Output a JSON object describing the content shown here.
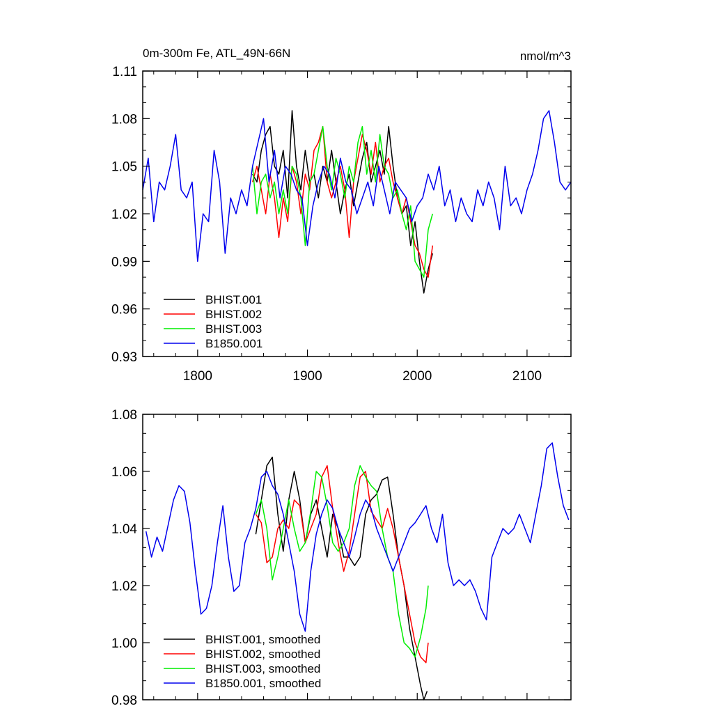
{
  "chart_data": [
    {
      "type": "line",
      "title_left": "0m-300m Fe, ATL_49N-66N",
      "title_right": "nmol/m^3",
      "xlim": [
        1750,
        2140
      ],
      "ylim": [
        0.93,
        1.11
      ],
      "xticks": [
        1800,
        1900,
        2000,
        2100
      ],
      "xtick_labels": [
        "1800",
        "1900",
        "2000",
        "2100"
      ],
      "yticks": [
        0.93,
        0.96,
        0.99,
        1.02,
        1.05,
        1.08,
        1.11
      ],
      "ytick_labels": [
        "0.93",
        "0.96",
        "0.99",
        "1.02",
        "1.05",
        "1.08",
        "1.11"
      ],
      "legend_position": "bottom-left",
      "series": [
        {
          "name": "BHIST.001",
          "color": "#000000",
          "x": [
            1850,
            1854,
            1858,
            1862,
            1866,
            1870,
            1874,
            1878,
            1882,
            1886,
            1890,
            1894,
            1898,
            1902,
            1906,
            1910,
            1914,
            1918,
            1922,
            1926,
            1930,
            1934,
            1938,
            1942,
            1946,
            1950,
            1954,
            1958,
            1962,
            1966,
            1970,
            1974,
            1978,
            1982,
            1986,
            1990,
            1994,
            1998,
            2002,
            2006,
            2010,
            2014
          ],
          "values": [
            1.045,
            1.04,
            1.06,
            1.07,
            1.075,
            1.05,
            1.045,
            1.06,
            1.03,
            1.085,
            1.05,
            1.035,
            1.06,
            1.04,
            1.045,
            1.03,
            1.05,
            1.04,
            1.06,
            1.04,
            1.02,
            1.035,
            1.045,
            1.025,
            1.04,
            1.055,
            1.065,
            1.04,
            1.05,
            1.06,
            1.045,
            1.075,
            1.05,
            1.03,
            1.02,
            1.025,
            1.0,
            1.015,
            0.99,
            0.97,
            0.985,
            0.995
          ]
        },
        {
          "name": "BHIST.002",
          "color": "#ff0000",
          "x": [
            1850,
            1854,
            1858,
            1862,
            1866,
            1870,
            1874,
            1878,
            1882,
            1886,
            1890,
            1894,
            1898,
            1902,
            1906,
            1910,
            1914,
            1918,
            1922,
            1926,
            1930,
            1934,
            1938,
            1942,
            1946,
            1950,
            1954,
            1958,
            1962,
            1966,
            1970,
            1974,
            1978,
            1982,
            1986,
            1990,
            1994,
            1998,
            2002,
            2006,
            2010,
            2014
          ],
          "values": [
            1.04,
            1.05,
            1.035,
            1.02,
            1.045,
            1.03,
            1.005,
            1.03,
            1.015,
            1.05,
            1.04,
            1.02,
            1.045,
            1.035,
            1.06,
            1.065,
            1.075,
            1.04,
            1.03,
            1.04,
            1.05,
            1.035,
            1.005,
            1.04,
            1.055,
            1.07,
            1.06,
            1.045,
            1.065,
            1.04,
            1.05,
            1.055,
            1.04,
            1.03,
            1.02,
            1.03,
            1.015,
            1.0,
            0.995,
            0.985,
            0.98,
            1.0
          ]
        },
        {
          "name": "BHIST.003",
          "color": "#00ee00",
          "x": [
            1850,
            1854,
            1858,
            1862,
            1866,
            1870,
            1874,
            1878,
            1882,
            1886,
            1890,
            1894,
            1898,
            1902,
            1906,
            1910,
            1914,
            1918,
            1922,
            1926,
            1930,
            1934,
            1938,
            1942,
            1946,
            1950,
            1954,
            1958,
            1962,
            1966,
            1970,
            1974,
            1978,
            1982,
            1986,
            1990,
            1994,
            1998,
            2002,
            2006,
            2010,
            2014
          ],
          "values": [
            1.05,
            1.02,
            1.04,
            1.045,
            1.03,
            1.04,
            1.02,
            1.035,
            1.02,
            1.05,
            1.045,
            1.03,
            1.0,
            1.04,
            1.045,
            1.06,
            1.075,
            1.05,
            1.035,
            1.055,
            1.045,
            1.03,
            1.05,
            1.04,
            1.065,
            1.075,
            1.045,
            1.06,
            1.04,
            1.07,
            1.05,
            1.045,
            1.03,
            1.035,
            1.02,
            1.01,
            1.025,
            0.99,
            0.985,
            0.98,
            1.01,
            1.02
          ]
        },
        {
          "name": "B1850.001",
          "color": "#0000ee",
          "x": [
            1750,
            1755,
            1760,
            1765,
            1770,
            1775,
            1780,
            1785,
            1790,
            1795,
            1800,
            1805,
            1810,
            1815,
            1820,
            1825,
            1830,
            1835,
            1840,
            1845,
            1850,
            1855,
            1860,
            1865,
            1870,
            1875,
            1880,
            1885,
            1890,
            1895,
            1900,
            1905,
            1910,
            1915,
            1920,
            1925,
            1930,
            1935,
            1940,
            1945,
            1950,
            1955,
            1960,
            1965,
            1970,
            1975,
            1980,
            1985,
            1990,
            1995,
            2000,
            2005,
            2010,
            2015,
            2020,
            2025,
            2030,
            2035,
            2040,
            2045,
            2050,
            2055,
            2060,
            2065,
            2070,
            2075,
            2080,
            2085,
            2090,
            2095,
            2100,
            2105,
            2110,
            2115,
            2120,
            2125,
            2130,
            2135,
            2140
          ],
          "values": [
            1.035,
            1.055,
            1.015,
            1.04,
            1.035,
            1.05,
            1.07,
            1.035,
            1.03,
            1.04,
            0.99,
            1.02,
            1.015,
            1.06,
            1.04,
            0.995,
            1.03,
            1.02,
            1.035,
            1.025,
            1.05,
            1.065,
            1.08,
            1.04,
            1.06,
            1.03,
            1.05,
            1.045,
            1.035,
            1.03,
            1.0,
            1.025,
            1.04,
            1.05,
            1.045,
            1.03,
            1.055,
            1.04,
            1.035,
            1.02,
            1.03,
            1.04,
            1.025,
            1.05,
            1.035,
            1.02,
            1.04,
            1.035,
            1.03,
            1.015,
            1.025,
            1.03,
            1.045,
            1.035,
            1.05,
            1.025,
            1.035,
            1.015,
            1.03,
            1.02,
            1.015,
            1.035,
            1.025,
            1.04,
            1.03,
            1.01,
            1.05,
            1.025,
            1.03,
            1.02,
            1.035,
            1.045,
            1.06,
            1.08,
            1.085,
            1.065,
            1.04,
            1.035,
            1.04
          ]
        }
      ]
    },
    {
      "type": "line",
      "xlim": [
        1750,
        2140
      ],
      "ylim": [
        0.98,
        1.08
      ],
      "xticks": [
        1800,
        1900,
        2000,
        2100
      ],
      "yticks": [
        0.98,
        1.0,
        1.02,
        1.04,
        1.06,
        1.08
      ],
      "ytick_labels": [
        "0.98",
        "1.00",
        "1.02",
        "1.04",
        "1.06",
        "1.08"
      ],
      "legend_position": "bottom-left",
      "series": [
        {
          "name": "BHIST.001, smoothed",
          "color": "#000000",
          "x": [
            1853,
            1858,
            1863,
            1868,
            1873,
            1878,
            1883,
            1888,
            1893,
            1898,
            1903,
            1908,
            1913,
            1918,
            1923,
            1928,
            1933,
            1938,
            1943,
            1948,
            1953,
            1958,
            1963,
            1968,
            1973,
            1978,
            1983,
            1988,
            1993,
            1998,
            2003,
            2006,
            2009
          ],
          "values": [
            1.038,
            1.05,
            1.062,
            1.065,
            1.045,
            1.032,
            1.05,
            1.06,
            1.05,
            1.035,
            1.045,
            1.05,
            1.04,
            1.03,
            1.045,
            1.04,
            1.03,
            1.03,
            1.027,
            1.03,
            1.045,
            1.05,
            1.052,
            1.057,
            1.058,
            1.045,
            1.03,
            1.02,
            1.005,
            0.995,
            0.985,
            0.98,
            0.983
          ]
        },
        {
          "name": "BHIST.002, smoothed",
          "color": "#ff0000",
          "x": [
            1853,
            1858,
            1863,
            1868,
            1873,
            1878,
            1883,
            1888,
            1893,
            1898,
            1903,
            1908,
            1913,
            1918,
            1923,
            1928,
            1933,
            1938,
            1943,
            1948,
            1953,
            1958,
            1963,
            1968,
            1973,
            1978,
            1983,
            1988,
            1993,
            1998,
            2003,
            2008,
            2010
          ],
          "values": [
            1.045,
            1.042,
            1.028,
            1.03,
            1.04,
            1.043,
            1.04,
            1.05,
            1.048,
            1.035,
            1.04,
            1.045,
            1.058,
            1.062,
            1.047,
            1.035,
            1.025,
            1.032,
            1.045,
            1.058,
            1.06,
            1.046,
            1.043,
            1.04,
            1.047,
            1.04,
            1.03,
            1.02,
            1.01,
            1.0,
            0.995,
            0.993,
            1.0
          ]
        },
        {
          "name": "BHIST.003, smoothed",
          "color": "#00ee00",
          "x": [
            1853,
            1858,
            1863,
            1868,
            1873,
            1878,
            1883,
            1888,
            1893,
            1898,
            1903,
            1908,
            1913,
            1918,
            1923,
            1928,
            1933,
            1938,
            1943,
            1948,
            1953,
            1958,
            1963,
            1968,
            1973,
            1978,
            1983,
            1988,
            1993,
            1998,
            2003,
            2008,
            2010
          ],
          "values": [
            1.045,
            1.05,
            1.04,
            1.022,
            1.03,
            1.04,
            1.05,
            1.04,
            1.032,
            1.035,
            1.046,
            1.06,
            1.058,
            1.048,
            1.035,
            1.032,
            1.035,
            1.04,
            1.055,
            1.062,
            1.058,
            1.055,
            1.053,
            1.04,
            1.03,
            1.025,
            1.01,
            1.0,
            0.998,
            0.995,
            1.002,
            1.012,
            1.02
          ]
        },
        {
          "name": "B1850.001, smoothed",
          "color": "#0000ee",
          "x": [
            1753,
            1758,
            1763,
            1768,
            1773,
            1778,
            1783,
            1788,
            1793,
            1798,
            1803,
            1808,
            1813,
            1818,
            1823,
            1828,
            1833,
            1838,
            1843,
            1848,
            1853,
            1858,
            1863,
            1868,
            1873,
            1878,
            1883,
            1888,
            1893,
            1898,
            1903,
            1908,
            1913,
            1918,
            1923,
            1928,
            1933,
            1938,
            1943,
            1948,
            1953,
            1958,
            1963,
            1968,
            1973,
            1978,
            1983,
            1988,
            1993,
            1998,
            2003,
            2008,
            2013,
            2018,
            2023,
            2028,
            2033,
            2038,
            2043,
            2048,
            2053,
            2058,
            2063,
            2068,
            2073,
            2078,
            2083,
            2088,
            2093,
            2098,
            2103,
            2108,
            2113,
            2118,
            2123,
            2128,
            2133,
            2138
          ],
          "values": [
            1.039,
            1.03,
            1.037,
            1.032,
            1.041,
            1.05,
            1.055,
            1.053,
            1.042,
            1.025,
            1.01,
            1.012,
            1.02,
            1.035,
            1.048,
            1.03,
            1.018,
            1.02,
            1.035,
            1.04,
            1.047,
            1.058,
            1.06,
            1.055,
            1.052,
            1.045,
            1.035,
            1.025,
            1.01,
            1.004,
            1.025,
            1.038,
            1.045,
            1.05,
            1.047,
            1.04,
            1.035,
            1.03,
            1.037,
            1.045,
            1.05,
            1.047,
            1.04,
            1.035,
            1.03,
            1.025,
            1.03,
            1.035,
            1.04,
            1.042,
            1.045,
            1.048,
            1.04,
            1.035,
            1.045,
            1.028,
            1.02,
            1.022,
            1.02,
            1.022,
            1.018,
            1.012,
            1.008,
            1.03,
            1.035,
            1.04,
            1.038,
            1.04,
            1.045,
            1.04,
            1.035,
            1.045,
            1.055,
            1.068,
            1.07,
            1.058,
            1.048,
            1.043
          ]
        }
      ]
    }
  ]
}
